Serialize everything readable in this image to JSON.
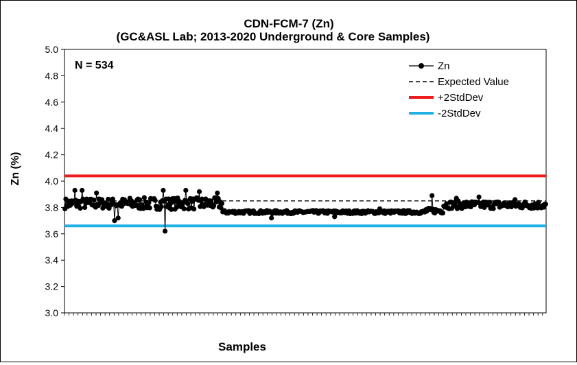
{
  "chart_data": {
    "type": "line",
    "title_line1": "CDN-FCM-7 (Zn)",
    "title_line2": "(GC&ASL Lab; 2013-2020 Underground & Core Samples)",
    "xlabel": "Samples",
    "ylabel": "Zn (%)",
    "ylim": [
      3.0,
      5.0
    ],
    "yticks": [
      "3.0",
      "3.2",
      "3.4",
      "3.6",
      "3.8",
      "4.0",
      "4.2",
      "4.4",
      "4.6",
      "4.8",
      "5.0"
    ],
    "annotation": "N = 534",
    "n_samples": 534,
    "legend_position": "top-right",
    "series": [
      {
        "name": "Zn",
        "color": "#000000",
        "segments": [
          {
            "from": 1,
            "to": 70,
            "mean": 3.83,
            "jitter": 0.04,
            "outliers": [
              [
                12,
                3.93
              ],
              [
                20,
                3.93
              ],
              [
                36,
                3.91
              ],
              [
                56,
                3.7
              ],
              [
                60,
                3.72
              ]
            ]
          },
          {
            "from": 71,
            "to": 175,
            "mean": 3.83,
            "jitter": 0.045,
            "outliers": [
              [
                110,
                3.93
              ],
              [
                112,
                3.62
              ],
              [
                135,
                3.93
              ],
              [
                150,
                3.92
              ],
              [
                170,
                3.91
              ]
            ]
          },
          {
            "from": 176,
            "to": 400,
            "mean": 3.765,
            "jitter": 0.012,
            "outliers": [
              [
                230,
                3.72
              ],
              [
                300,
                3.73
              ],
              [
                350,
                3.79
              ]
            ]
          },
          {
            "from": 401,
            "to": 420,
            "mean": 3.775,
            "jitter": 0.02,
            "outliers": [
              [
                408,
                3.89
              ]
            ]
          },
          {
            "from": 421,
            "to": 534,
            "mean": 3.82,
            "jitter": 0.03,
            "outliers": [
              [
                435,
                3.87
              ],
              [
                460,
                3.88
              ],
              [
                500,
                3.86
              ]
            ]
          }
        ]
      },
      {
        "name": "Expected Value",
        "value": 3.85,
        "color": "#000000",
        "style": "dashed"
      },
      {
        "name": "+2StdDev",
        "value": 4.04,
        "color": "#ee1c1c"
      },
      {
        "name": "-2StdDev",
        "value": 3.66,
        "color": "#1fb0e6"
      }
    ]
  }
}
